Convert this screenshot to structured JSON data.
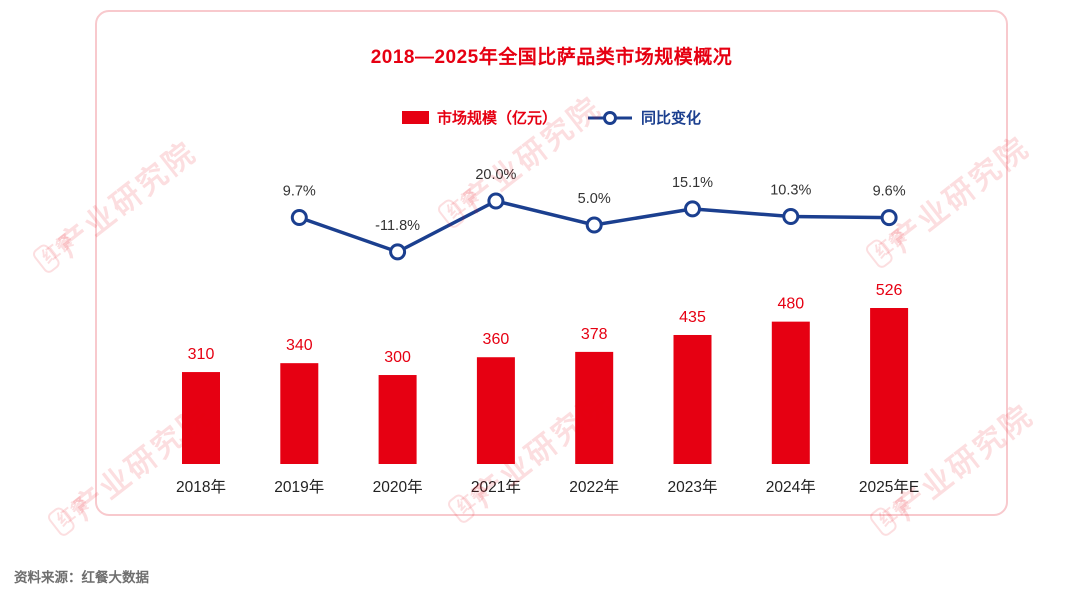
{
  "title": "2018—2025年全国比萨品类市场规模概况",
  "legend": {
    "bars": "市场规模（亿元）",
    "line": "同比变化"
  },
  "source": "资料来源：红餐大数据",
  "watermark": {
    "logo": "红餐",
    "text": "产业研究院"
  },
  "colors": {
    "bar": "#e60012",
    "line": "#1b3f8f",
    "axis_label": "#222222",
    "pct_label": "#333333",
    "card_border": "#f8c9cd"
  },
  "chart_data": {
    "type": "bar",
    "title": "2018—2025年全国比萨品类市场规模概况",
    "categories": [
      "2018年",
      "2019年",
      "2020年",
      "2021年",
      "2022年",
      "2023年",
      "2024年",
      "2025年E"
    ],
    "series": [
      {
        "name": "市场规模（亿元）",
        "type": "bar",
        "color": "#e60012",
        "values": [
          310,
          340,
          300,
          360,
          378,
          435,
          480,
          526
        ]
      },
      {
        "name": "同比变化",
        "type": "line",
        "color": "#1b3f8f",
        "unit": "%",
        "values": [
          null,
          9.7,
          -11.8,
          20.0,
          5.0,
          15.1,
          10.3,
          9.6
        ]
      }
    ],
    "value_labels": true,
    "legend_position": "top",
    "grid": false,
    "xlabel": "",
    "ylabel": ""
  }
}
